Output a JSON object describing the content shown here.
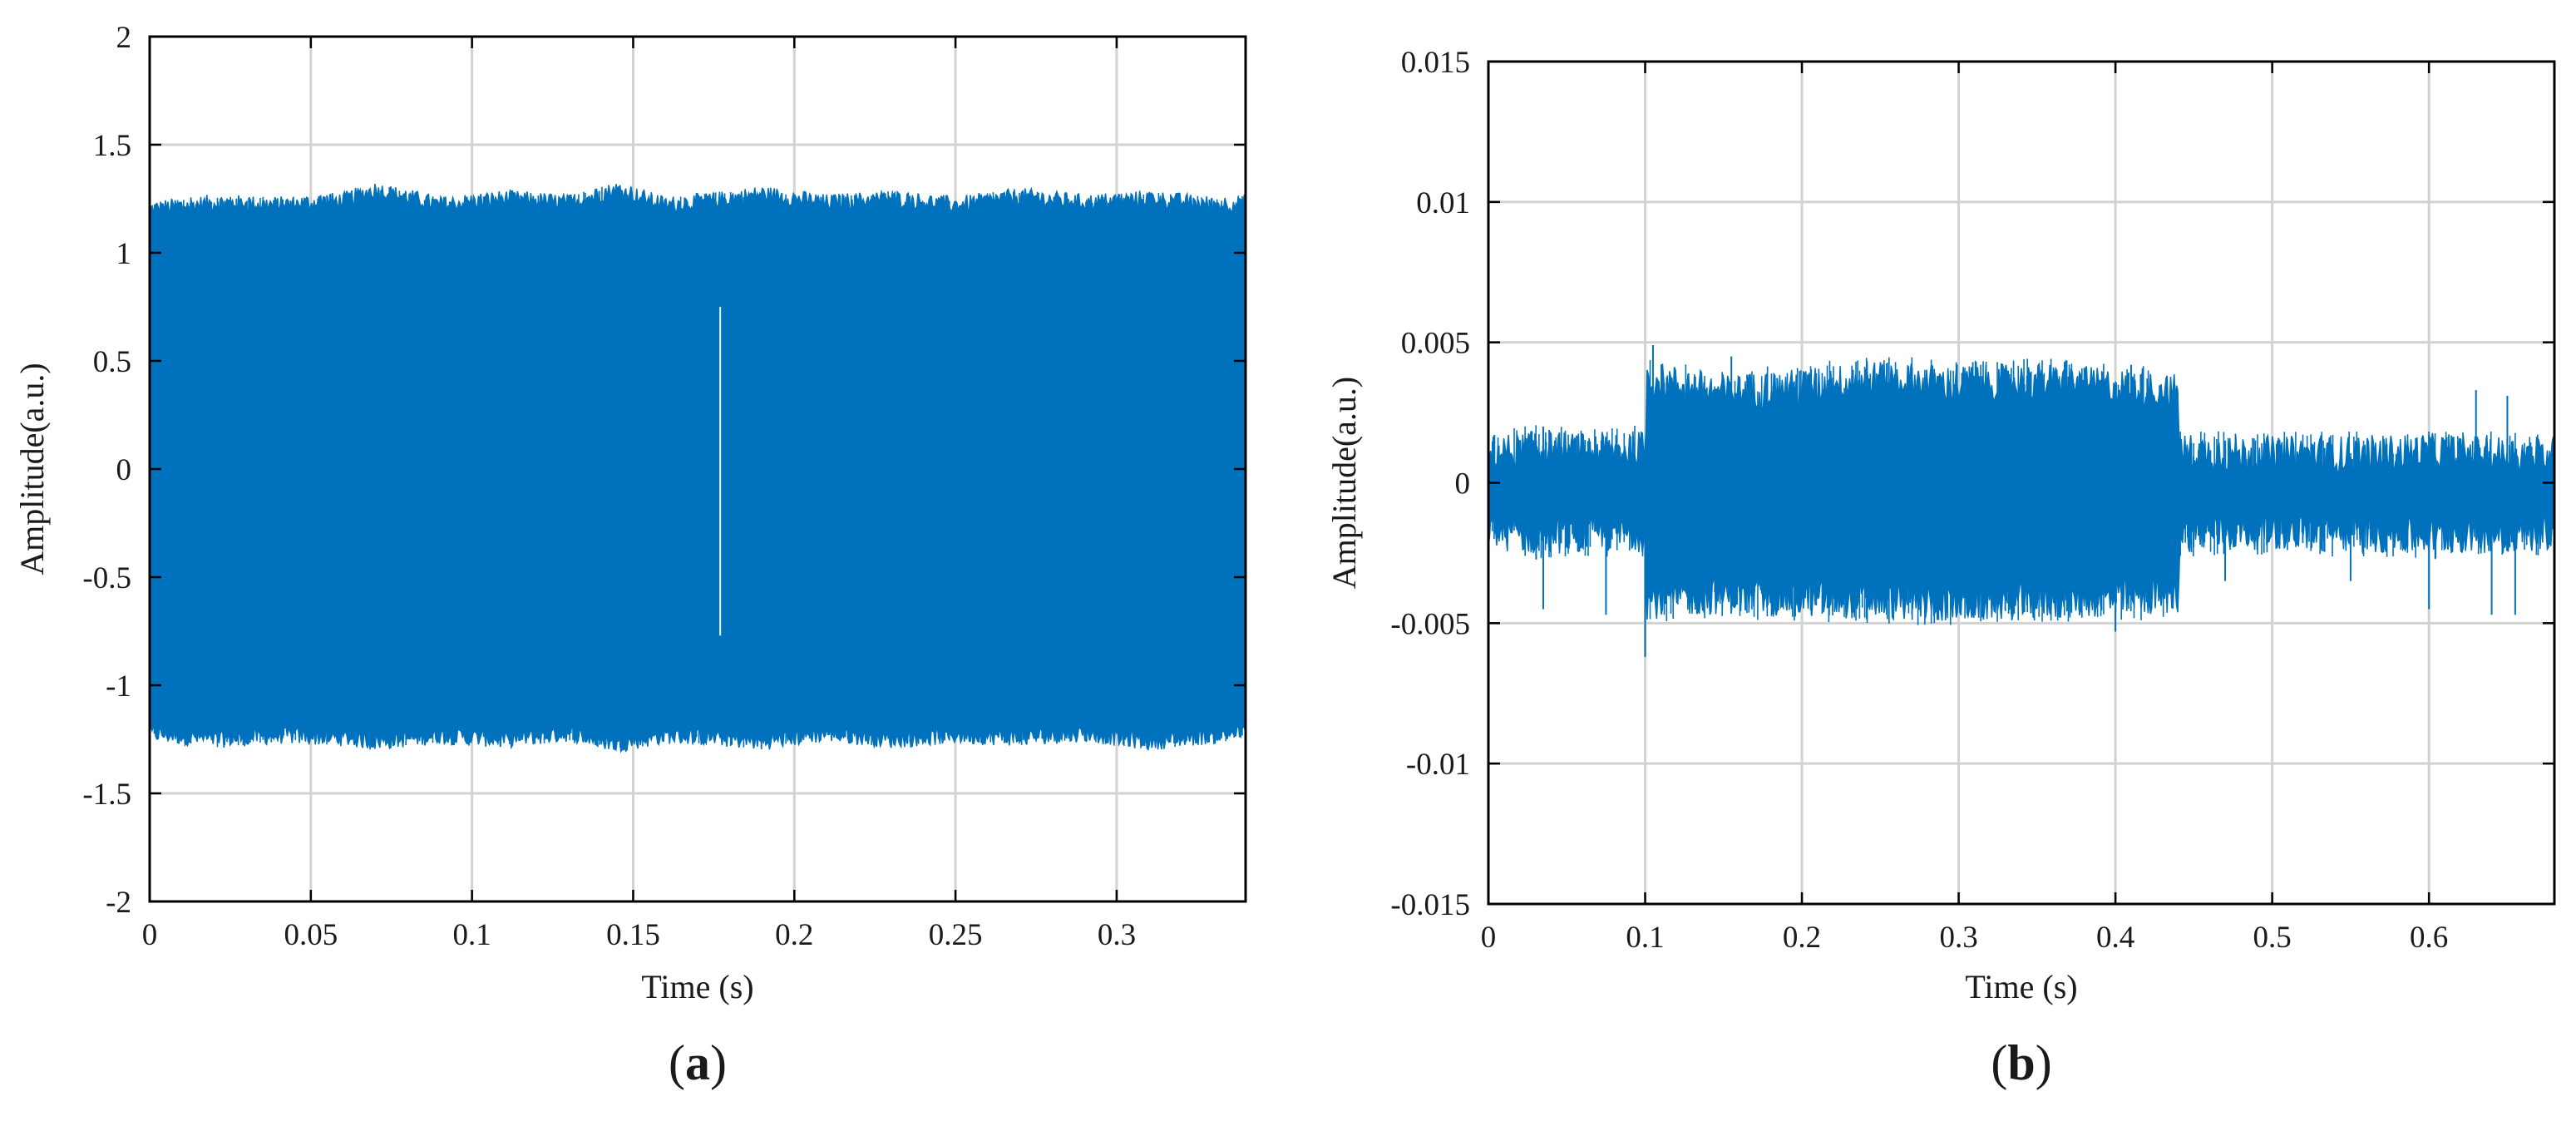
{
  "chart_data": [
    {
      "panel": "a",
      "panel_label": "(a)",
      "type": "line",
      "xlabel": "Time (s)",
      "ylabel": "Amplitude(a.u.)",
      "xlim": [
        0,
        0.34
      ],
      "ylim": [
        -2,
        2
      ],
      "xticks": [
        0,
        0.05,
        0.1,
        0.15,
        0.2,
        0.25,
        0.3
      ],
      "xtick_labels": [
        "0",
        "0.05",
        "0.1",
        "0.15",
        "0.2",
        "0.25",
        "0.3"
      ],
      "yticks": [
        2,
        1.5,
        1,
        0.5,
        0,
        -0.5,
        -1,
        -1.5,
        -2
      ],
      "ytick_labels": [
        "2",
        "1.5",
        "1",
        "0.5",
        "0",
        "-0.5",
        "-1",
        "-1.5",
        "-2"
      ],
      "grid": true,
      "color": "#0072BD",
      "envelope": {
        "x": [
          0,
          0.02,
          0.04,
          0.06,
          0.07,
          0.09,
          0.11,
          0.13,
          0.145,
          0.16,
          0.175,
          0.19,
          0.21,
          0.23,
          0.25,
          0.27,
          0.29,
          0.31,
          0.33,
          0.34
        ],
        "upper": [
          1.19,
          1.22,
          1.21,
          1.23,
          1.28,
          1.21,
          1.24,
          1.22,
          1.28,
          1.21,
          1.23,
          1.26,
          1.22,
          1.24,
          1.21,
          1.25,
          1.22,
          1.24,
          1.21,
          1.22
        ],
        "lower": [
          -1.21,
          -1.24,
          -1.22,
          -1.23,
          -1.25,
          -1.22,
          -1.24,
          -1.21,
          -1.26,
          -1.22,
          -1.23,
          -1.25,
          -1.21,
          -1.24,
          -1.22,
          -1.23,
          -1.21,
          -1.25,
          -1.22,
          -1.2
        ]
      }
    },
    {
      "panel": "b",
      "panel_label": "(b)",
      "type": "line",
      "xlabel": "Time (s)",
      "ylabel": "Amplitude(a.u.)",
      "xlim": [
        0,
        0.68
      ],
      "ylim": [
        -0.015,
        0.015
      ],
      "xticks": [
        0,
        0.1,
        0.2,
        0.3,
        0.4,
        0.5,
        0.6
      ],
      "xtick_labels": [
        "0",
        "0.1",
        "0.2",
        "0.3",
        "0.4",
        "0.5",
        "0.6"
      ],
      "yticks": [
        0.015,
        0.01,
        0.005,
        0,
        -0.005,
        -0.01,
        -0.015
      ],
      "ytick_labels": [
        "0.015",
        "0.01",
        "0.005",
        "0",
        "-0.005",
        "-0.01",
        "-0.015"
      ],
      "grid": true,
      "color": "#0072BD",
      "envelope": {
        "x": [
          0,
          0.03,
          0.06,
          0.1,
          0.101,
          0.15,
          0.2,
          0.25,
          0.3,
          0.35,
          0.4,
          0.44,
          0.441,
          0.5,
          0.55,
          0.6,
          0.65,
          0.68
        ],
        "upper": [
          0.0008,
          0.001,
          0.0009,
          0.001,
          0.0035,
          0.003,
          0.0032,
          0.0035,
          0.0033,
          0.0034,
          0.0032,
          0.003,
          0.0009,
          0.0008,
          0.0008,
          0.0009,
          0.0008,
          0.0008
        ],
        "lower": [
          -0.0015,
          -0.0017,
          -0.0016,
          -0.0016,
          -0.004,
          -0.0038,
          -0.0039,
          -0.004,
          -0.0041,
          -0.004,
          -0.0039,
          -0.0038,
          -0.0016,
          -0.0015,
          -0.0016,
          -0.0017,
          -0.0016,
          -0.0015
        ]
      },
      "spikes": [
        {
          "x": 0.035,
          "y": 0.002
        },
        {
          "x": 0.035,
          "y": -0.0045
        },
        {
          "x": 0.075,
          "y": -0.0047
        },
        {
          "x": 0.1,
          "y": -0.0062
        },
        {
          "x": 0.105,
          "y": 0.0049
        },
        {
          "x": 0.155,
          "y": 0.0045
        },
        {
          "x": 0.41,
          "y": 0.0042
        },
        {
          "x": 0.4,
          "y": -0.0053
        },
        {
          "x": 0.47,
          "y": -0.0035
        },
        {
          "x": 0.47,
          "y": 0.0015
        },
        {
          "x": 0.55,
          "y": -0.0035
        },
        {
          "x": 0.555,
          "y": 0.0016
        },
        {
          "x": 0.6,
          "y": -0.0045
        },
        {
          "x": 0.6,
          "y": 0.0017
        },
        {
          "x": 0.63,
          "y": 0.0033
        },
        {
          "x": 0.64,
          "y": -0.0047
        },
        {
          "x": 0.65,
          "y": 0.0031
        },
        {
          "x": 0.655,
          "y": -0.0047
        }
      ]
    }
  ]
}
